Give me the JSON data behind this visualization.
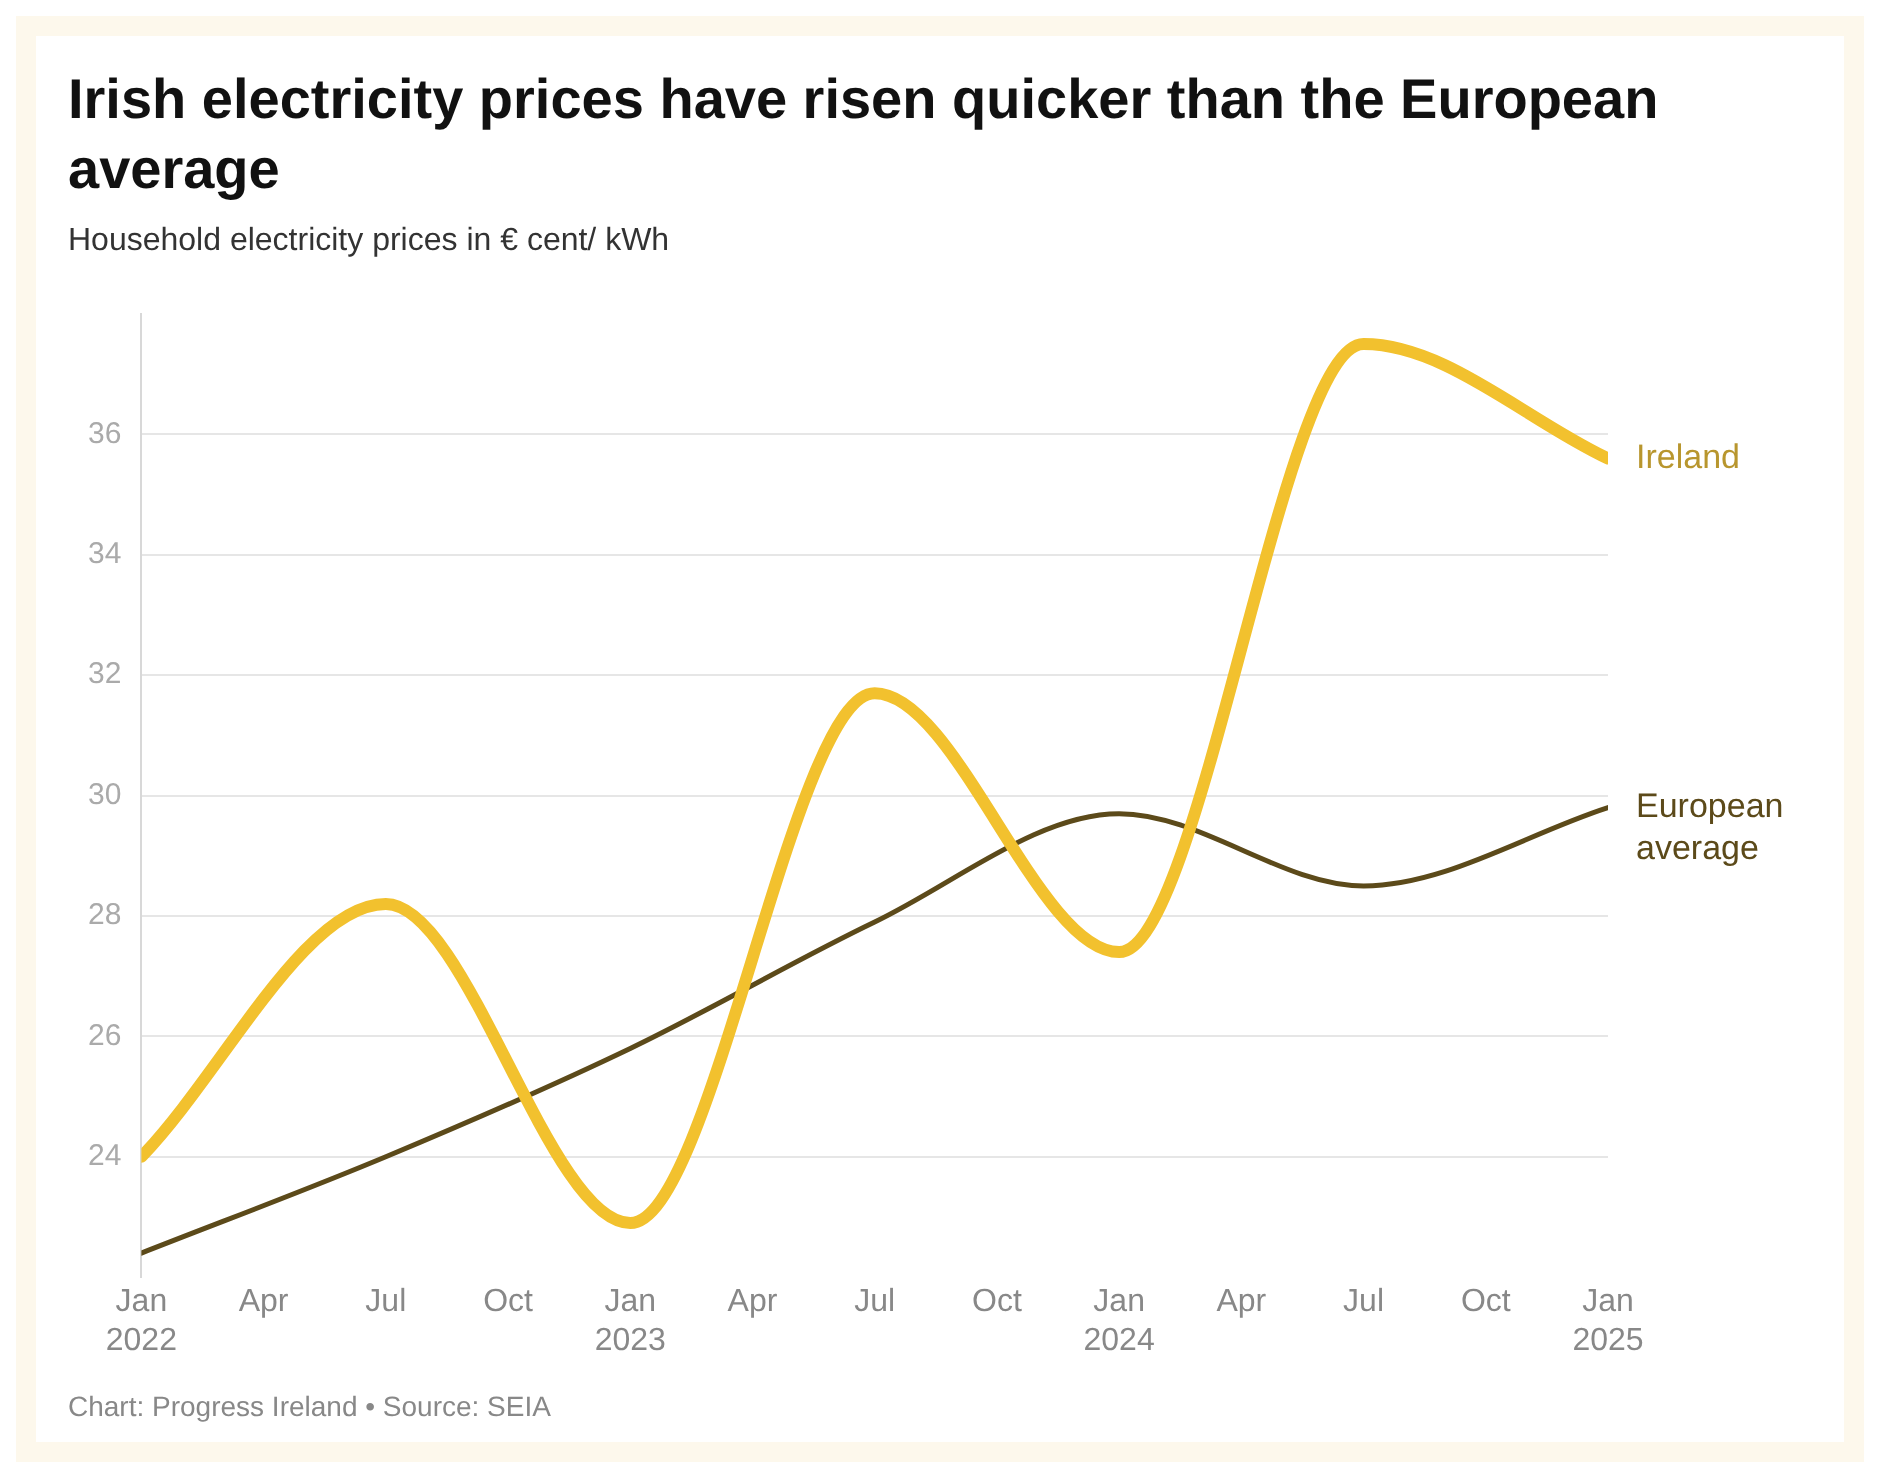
{
  "chart_data": {
    "type": "line",
    "title": "Irish electricity prices have risen quicker than the European average",
    "subtitle": "Household electricity prices in € cent/ kWh",
    "annotations": [
      "Chart: Progress Ireland • Source: SEIA"
    ],
    "x": [
      "2022-01",
      "2022-07",
      "2023-01",
      "2023-07",
      "2024-01",
      "2024-07",
      "2025-01"
    ],
    "series": [
      {
        "name": "Ireland",
        "color": "#f2c12e",
        "values": [
          24.0,
          28.2,
          22.9,
          31.7,
          27.4,
          37.5,
          35.6
        ]
      },
      {
        "name": "European average",
        "color": "#5c4a1a",
        "values": [
          22.4,
          24.0,
          25.8,
          27.9,
          29.7,
          28.5,
          29.8
        ]
      }
    ],
    "xlim": [
      "2022-01",
      "2025-01"
    ],
    "xticks": [
      {
        "value": "2022-01",
        "label": "Jan\n2022"
      },
      {
        "value": "2022-04",
        "label": "Apr"
      },
      {
        "value": "2022-07",
        "label": "Jul"
      },
      {
        "value": "2022-10",
        "label": "Oct"
      },
      {
        "value": "2023-01",
        "label": "Jan\n2023"
      },
      {
        "value": "2023-04",
        "label": "Apr"
      },
      {
        "value": "2023-07",
        "label": "Jul"
      },
      {
        "value": "2023-10",
        "label": "Oct"
      },
      {
        "value": "2024-01",
        "label": "Jan\n2024"
      },
      {
        "value": "2024-04",
        "label": "Apr"
      },
      {
        "value": "2024-07",
        "label": "Jul"
      },
      {
        "value": "2024-10",
        "label": "Oct"
      },
      {
        "value": "2025-01",
        "label": "Jan\n2025"
      }
    ],
    "ylim": [
      22,
      38
    ],
    "yticks": [
      24,
      26,
      28,
      30,
      32,
      34,
      36
    ],
    "grid": "y",
    "legend": false,
    "marker": "none",
    "line_style": "solid"
  }
}
